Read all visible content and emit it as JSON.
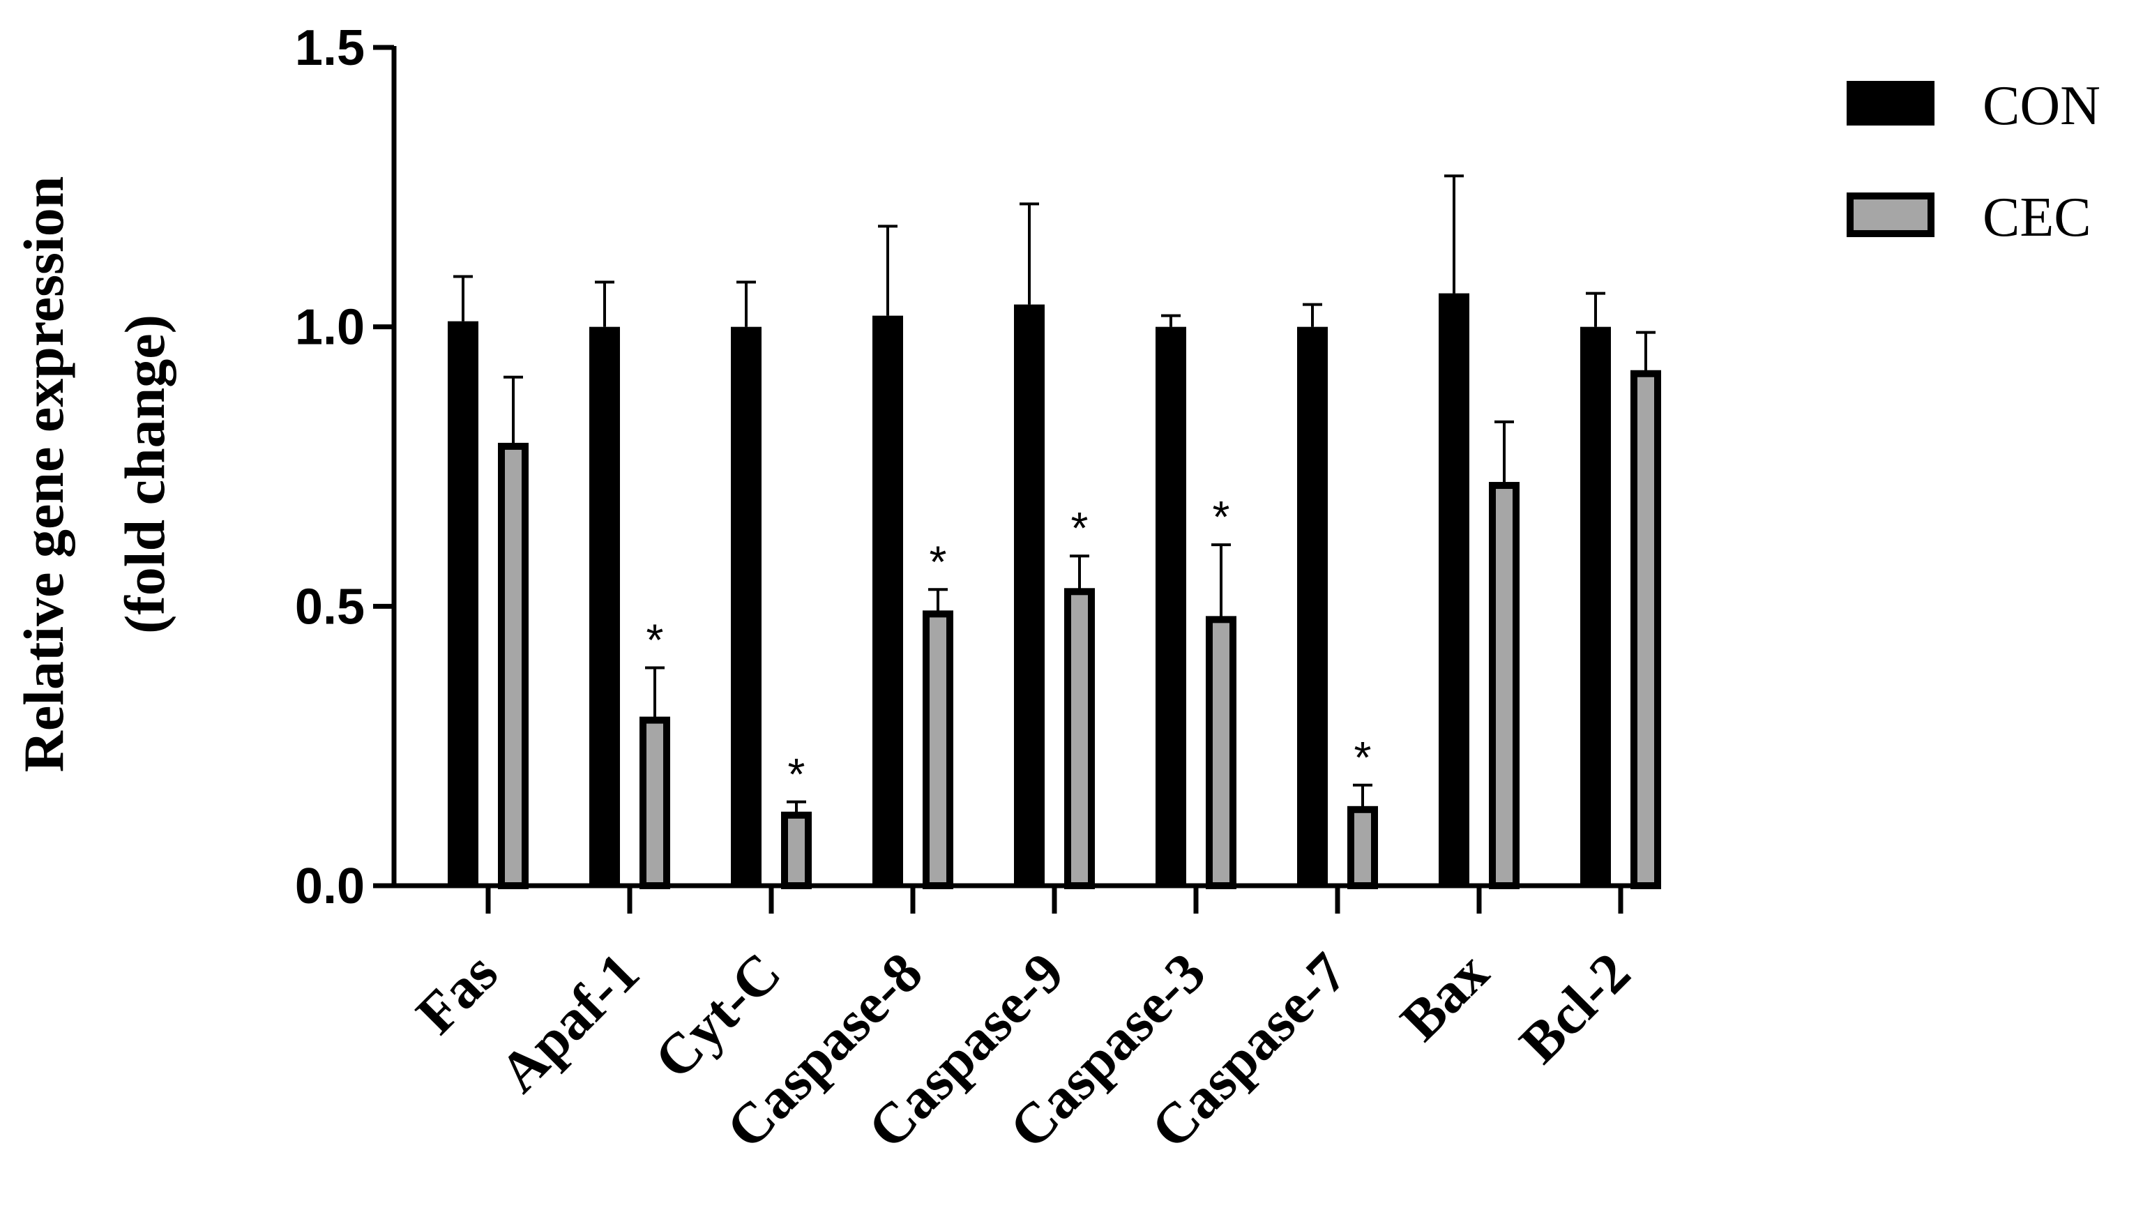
{
  "chart_data": {
    "type": "bar",
    "title": "",
    "xlabel": "",
    "ylabel": [
      "Relative gene expression",
      "(fold change)"
    ],
    "ylim": [
      0,
      1.5
    ],
    "yticks": [
      "0.0",
      "0.5",
      "1.0",
      "1.5"
    ],
    "categories": [
      "Fas",
      "Apaf-1",
      "Cyt-C",
      "Caspase-8",
      "Caspase-9",
      "Caspase-3",
      "Caspase-7",
      "Bax",
      "Bcl-2"
    ],
    "series": [
      {
        "name": "CON",
        "color": "#000000",
        "values": [
          1.01,
          1.0,
          1.0,
          1.02,
          1.04,
          1.0,
          1.0,
          1.06,
          1.0
        ],
        "errors": [
          0.08,
          0.08,
          0.08,
          0.16,
          0.18,
          0.02,
          0.04,
          0.21,
          0.06
        ]
      },
      {
        "name": "CEC",
        "color": "#a6a6a6",
        "values": [
          0.79,
          0.3,
          0.13,
          0.49,
          0.53,
          0.48,
          0.14,
          0.72,
          0.92
        ],
        "errors": [
          0.12,
          0.09,
          0.02,
          0.04,
          0.06,
          0.13,
          0.04,
          0.11,
          0.07
        ]
      }
    ],
    "significance": [
      "",
      "*",
      "*",
      "*",
      "*",
      "*",
      "*",
      "",
      ""
    ],
    "legend_position": "top-right"
  }
}
